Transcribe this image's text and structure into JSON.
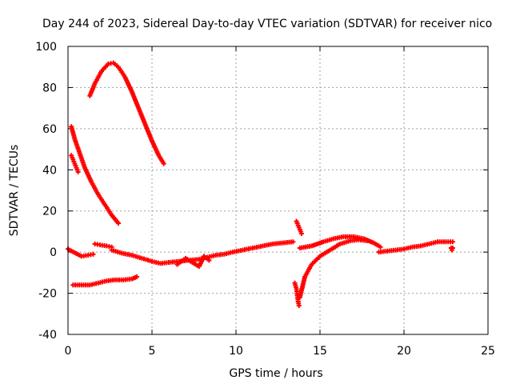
{
  "chart_data": {
    "type": "scatter",
    "title": "Day 244 of 2023, Sidereal Day-to-day VTEC variation (SDTVAR) for receiver nico",
    "xlabel": "GPS time / hours",
    "ylabel": "SDTVAR / TECUs",
    "xlim": [
      0,
      25
    ],
    "ylim": [
      -40,
      100
    ],
    "xticks": [
      0,
      5,
      10,
      15,
      20,
      25
    ],
    "yticks": [
      -40,
      -20,
      0,
      20,
      40,
      60,
      80,
      100
    ],
    "grid": true,
    "marker": "+",
    "color": "#ff0000",
    "series": [
      {
        "name": "arc-high-peak",
        "x": [
          1.3,
          1.6,
          2.0,
          2.4,
          2.7,
          3.0,
          3.4,
          3.8,
          4.2,
          4.6,
          5.0,
          5.4,
          5.7
        ],
        "y": [
          76,
          82,
          88,
          91.5,
          92,
          90,
          85,
          78,
          70,
          62,
          54,
          47,
          43
        ]
      },
      {
        "name": "arc-descending",
        "x": [
          0.2,
          0.4,
          0.7,
          1.0,
          1.4,
          1.8,
          2.2,
          2.6,
          3.0
        ],
        "y": [
          61,
          55,
          48,
          41,
          34,
          28,
          23,
          18,
          14
        ]
      },
      {
        "name": "arc-short",
        "x": [
          0.2,
          0.3,
          0.4,
          0.5,
          0.6
        ],
        "y": [
          47,
          45,
          43,
          41,
          39
        ]
      },
      {
        "name": "arc-low-negative",
        "x": [
          0.3,
          0.8,
          1.3,
          1.8,
          2.3,
          2.8,
          3.3,
          3.8,
          4.1
        ],
        "y": [
          -16,
          -16,
          -16,
          -15,
          -14,
          -13.5,
          -13.5,
          -13,
          -12
        ]
      },
      {
        "name": "track-near-zero-a",
        "x": [
          0.0,
          0.1,
          0.8,
          1.2,
          1.5
        ],
        "y": [
          1.5,
          1.0,
          -2,
          -1.5,
          -1
        ]
      },
      {
        "name": "track-near-zero-b",
        "x": [
          1.6,
          1.9,
          2.3,
          2.6
        ],
        "y": [
          4,
          3.5,
          3,
          2.5
        ]
      },
      {
        "name": "track-main",
        "x": [
          2.6,
          3.2,
          3.8,
          4.4,
          5.0,
          5.5,
          6.0,
          6.6,
          7.2,
          7.8,
          8.3,
          8.8,
          9.3,
          9.8,
          10.4,
          11.0,
          11.6,
          12.2,
          12.8,
          13.4
        ],
        "y": [
          1,
          -0.5,
          -1.5,
          -3,
          -4.5,
          -5.5,
          -5,
          -4.5,
          -4,
          -3.5,
          -2.5,
          -1.5,
          -1,
          0,
          1,
          2,
          3,
          4,
          4.5,
          5
        ]
      },
      {
        "name": "track-scatter-7-8",
        "x": [
          6.5,
          7.0,
          7.4,
          7.8,
          8.1,
          8.4
        ],
        "y": [
          -6,
          -3,
          -5,
          -7,
          -2,
          -4
        ]
      },
      {
        "name": "track-spike-13",
        "x": [
          13.6,
          13.7,
          13.8,
          13.9
        ],
        "y": [
          15,
          13,
          11,
          9
        ]
      },
      {
        "name": "track-drop-13",
        "x": [
          13.5,
          13.6,
          13.65,
          13.7,
          13.75
        ],
        "y": [
          -15,
          -18,
          -21,
          -24,
          -26
        ]
      },
      {
        "name": "track-recovery-14",
        "x": [
          13.8,
          14.1,
          14.5,
          15.0,
          15.6,
          16.2,
          16.8,
          17.3,
          17.8
        ],
        "y": [
          -22,
          -12,
          -6,
          -2,
          1,
          4,
          5.5,
          6,
          5.5
        ]
      },
      {
        "name": "track-upper-14-18",
        "x": [
          13.8,
          14.5,
          15.2,
          15.8,
          16.4,
          17.0,
          17.6,
          18.2,
          18.6
        ],
        "y": [
          2,
          3,
          5,
          6.5,
          7.5,
          7.5,
          6.5,
          4.5,
          2.5
        ]
      },
      {
        "name": "track-late",
        "x": [
          18.5,
          19.0,
          19.5,
          20.0,
          20.5,
          21.0,
          21.5,
          22.0,
          22.5,
          22.9
        ],
        "y": [
          0,
          0.5,
          1,
          1.5,
          2.5,
          3,
          4,
          5,
          5,
          5
        ]
      },
      {
        "name": "track-late-end",
        "x": [
          22.8,
          22.85,
          22.9
        ],
        "y": [
          2,
          1,
          2
        ]
      }
    ]
  }
}
